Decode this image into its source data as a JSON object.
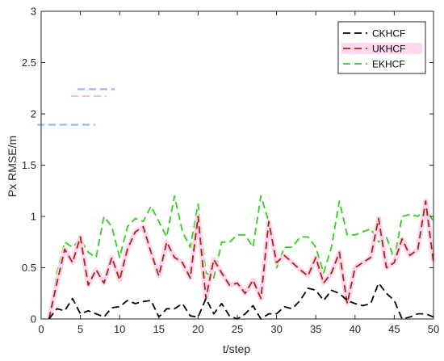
{
  "chart_data": {
    "type": "line",
    "xlabel": "t/step",
    "ylabel": "Px RMSE/m",
    "xlim": [
      0,
      50
    ],
    "ylim": [
      0,
      3
    ],
    "xticks": [
      0,
      5,
      10,
      15,
      20,
      25,
      30,
      35,
      40,
      45,
      50
    ],
    "yticks": [
      0,
      0.5,
      1,
      1.5,
      2,
      2.5,
      3
    ],
    "xtick_labels": [
      "0",
      "5",
      "10",
      "15",
      "20",
      "25",
      "30",
      "35",
      "40",
      "45",
      "50"
    ],
    "ytick_labels": [
      "0",
      "0.5",
      "1",
      "1.5",
      "2",
      "2.5",
      "3"
    ],
    "grid": false,
    "legend_position": "top-right",
    "x": [
      1,
      2,
      3,
      4,
      5,
      6,
      7,
      8,
      9,
      10,
      11,
      12,
      13,
      14,
      15,
      16,
      17,
      18,
      19,
      20,
      21,
      22,
      23,
      24,
      25,
      26,
      27,
      28,
      29,
      30,
      31,
      32,
      33,
      34,
      35,
      36,
      37,
      38,
      39,
      40,
      41,
      42,
      43,
      44,
      45,
      46,
      47,
      48,
      49,
      50
    ],
    "series": [
      {
        "name": "CKHCF",
        "color": "#000000",
        "values": [
          0.0,
          0.1,
          0.08,
          0.2,
          0.05,
          0.08,
          0.05,
          0.02,
          0.11,
          0.12,
          0.18,
          0.15,
          0.17,
          0.18,
          0.02,
          0.1,
          0.1,
          0.15,
          0.03,
          0.02,
          0.2,
          0.05,
          0.15,
          0.03,
          0.0,
          0.05,
          0.13,
          0.0,
          0.05,
          0.05,
          0.12,
          0.1,
          0.18,
          0.3,
          0.28,
          0.18,
          0.28,
          0.25,
          0.18,
          0.15,
          0.13,
          0.15,
          0.35,
          0.25,
          0.18,
          0.0,
          0.02,
          0.05,
          0.05,
          0.02
        ]
      },
      {
        "name": "UKHCF",
        "color": "#a0290f",
        "values": [
          0.0,
          0.35,
          0.68,
          0.55,
          0.8,
          0.33,
          0.48,
          0.35,
          0.6,
          0.38,
          0.68,
          0.85,
          0.9,
          0.65,
          0.42,
          0.75,
          0.6,
          0.55,
          0.4,
          1.0,
          0.2,
          0.58,
          0.45,
          0.33,
          0.35,
          0.25,
          0.38,
          0.2,
          0.95,
          0.55,
          0.62,
          0.55,
          0.48,
          0.42,
          0.6,
          0.35,
          0.45,
          0.65,
          0.15,
          0.5,
          0.55,
          0.6,
          0.98,
          0.5,
          0.55,
          0.78,
          0.62,
          0.68,
          1.15,
          0.55
        ]
      },
      {
        "name": "EKHCF",
        "color": "#2fcf1c",
        "values": [
          0.0,
          0.45,
          0.75,
          0.7,
          0.78,
          0.65,
          0.6,
          1.0,
          0.9,
          0.6,
          0.9,
          0.98,
          0.95,
          1.1,
          0.95,
          0.8,
          1.2,
          0.85,
          0.7,
          1.12,
          0.45,
          0.4,
          0.75,
          0.75,
          0.82,
          0.82,
          0.7,
          1.2,
          0.95,
          0.5,
          0.7,
          0.7,
          0.8,
          0.8,
          0.7,
          0.45,
          0.7,
          1.15,
          0.82,
          0.82,
          0.85,
          0.88,
          0.75,
          0.8,
          0.58,
          1.0,
          1.02,
          1.0,
          1.08,
          0.95
        ]
      }
    ]
  }
}
